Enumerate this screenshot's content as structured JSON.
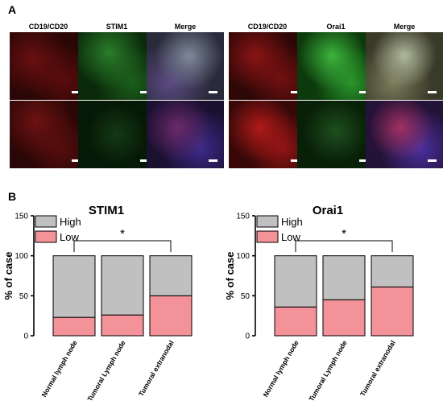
{
  "panel_a": {
    "label": "A",
    "groups": [
      {
        "headers": [
          "CD19/CD20",
          "STIM1",
          "Merge"
        ]
      },
      {
        "headers": [
          "CD19/CD20",
          "Orai1",
          "Merge"
        ]
      }
    ]
  },
  "panel_b": {
    "label": "B"
  },
  "colors": {
    "high": "#c0c0c0",
    "low": "#f4929a",
    "red_stain": "#cc1111",
    "green_stain": "#1faa22",
    "merge_stain": "#6a5aa8"
  },
  "chart_data": [
    {
      "type": "bar",
      "stacked": true,
      "title": "STIM1",
      "ylabel": "% of case",
      "ylim": [
        0,
        150
      ],
      "yticks": [
        0,
        50,
        100,
        150
      ],
      "categories": [
        "Normal lymph node",
        "Tumoral Lymph node",
        "Tumoral extranodal"
      ],
      "series": [
        {
          "name": "Low",
          "values": [
            23,
            26,
            50
          ]
        },
        {
          "name": "High",
          "values": [
            77,
            74,
            50
          ]
        }
      ],
      "legend": [
        "High",
        "Low"
      ],
      "legend_position": "top-left",
      "annotation": "*"
    },
    {
      "type": "bar",
      "stacked": true,
      "title": "Orai1",
      "ylabel": "% of case",
      "ylim": [
        0,
        150
      ],
      "yticks": [
        0,
        50,
        100,
        150
      ],
      "categories": [
        "Normal lymph node",
        "Tumoral Lymph node",
        "Tumoral extranodal"
      ],
      "series": [
        {
          "name": "Low",
          "values": [
            36,
            45,
            61
          ]
        },
        {
          "name": "High",
          "values": [
            64,
            55,
            39
          ]
        }
      ],
      "legend": [
        "High",
        "Low"
      ],
      "legend_position": "top-left",
      "annotation": "*"
    }
  ]
}
